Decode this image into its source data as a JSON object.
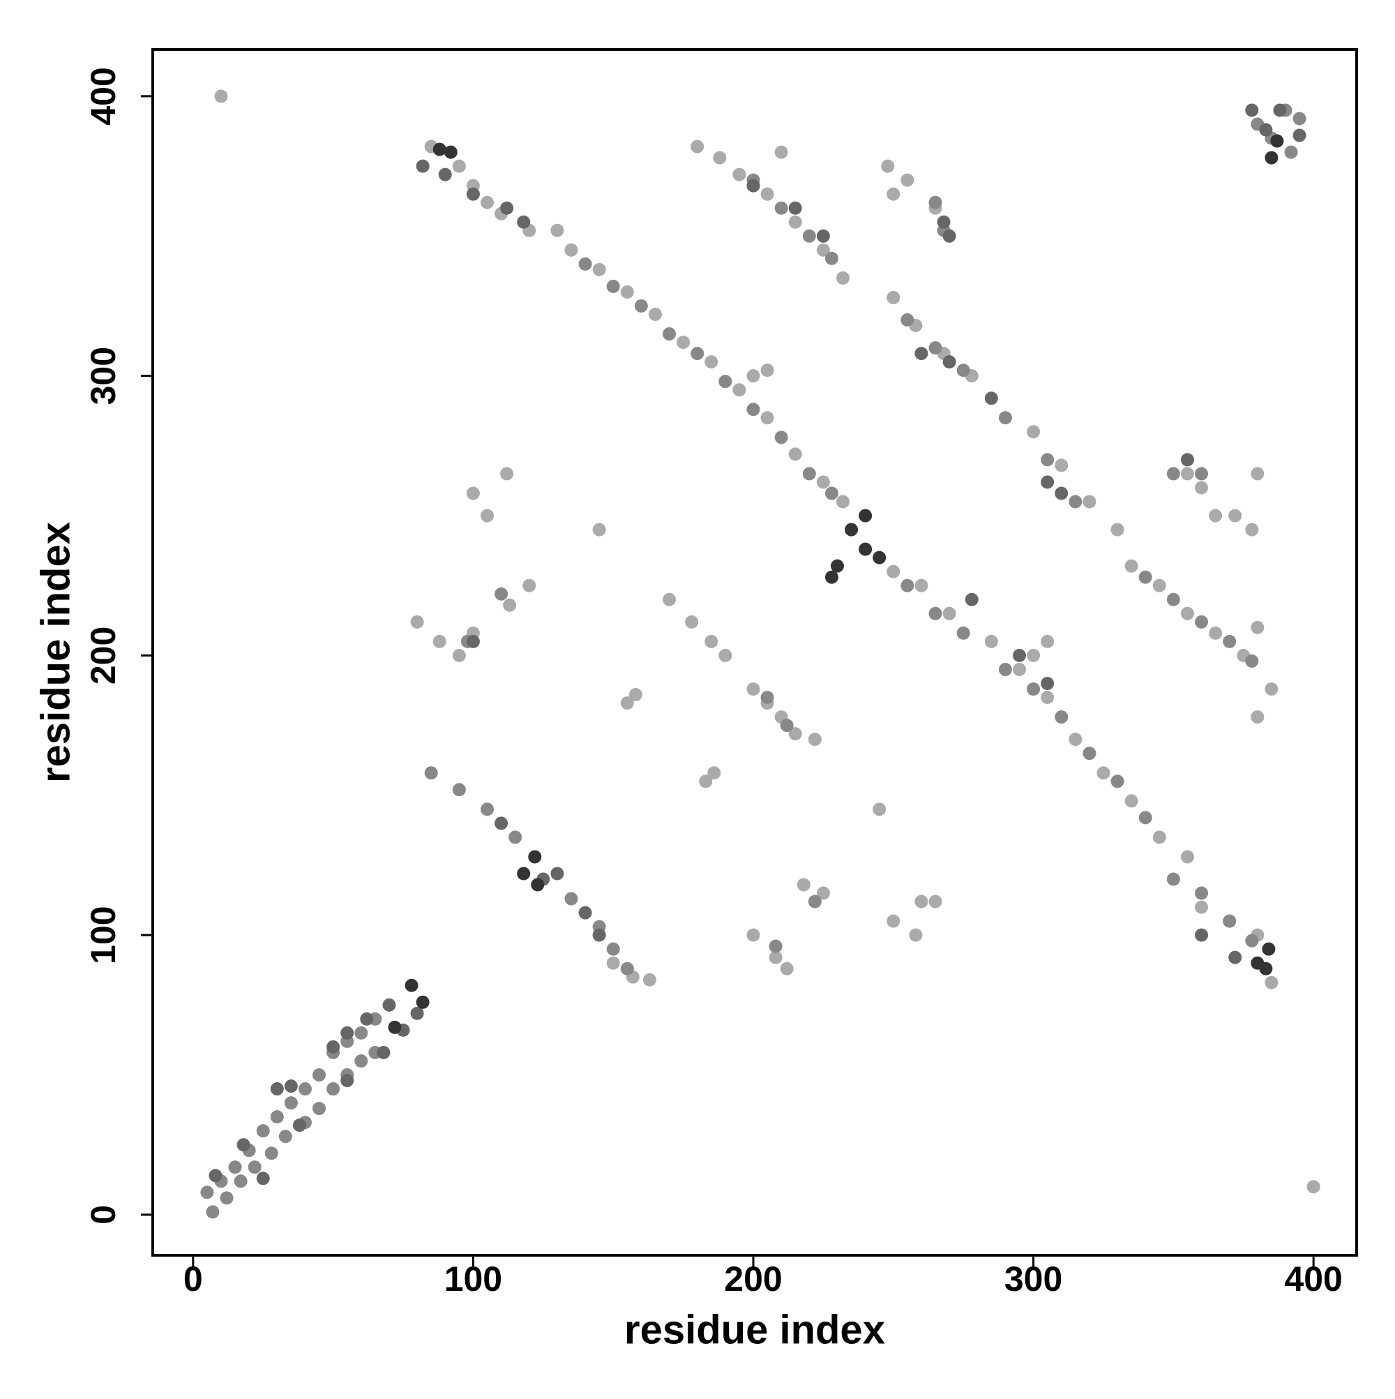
{
  "chart_data": {
    "type": "scatter",
    "xlabel": "residue index",
    "ylabel": "residue index",
    "xlim": [
      -14.4,
      415.4
    ],
    "ylim": [
      -14.5,
      416.7
    ],
    "xticks": [
      0,
      100,
      200,
      300,
      400
    ],
    "yticks": [
      0,
      100,
      200,
      300,
      400
    ],
    "series": [
      {
        "color": "#aaaaaa",
        "x": [
          10,
          400,
          85,
          95,
          100,
          105,
          110,
          120,
          130,
          180,
          188,
          195,
          205,
          215,
          225,
          232,
          135,
          145,
          155,
          165,
          175,
          185,
          195,
          205,
          215,
          225,
          232,
          250,
          260,
          270,
          285,
          295,
          305,
          315,
          325,
          335,
          345,
          355,
          250,
          258,
          268,
          278,
          300,
          310,
          320,
          330,
          335,
          345,
          355,
          365,
          375,
          385,
          380,
          355,
          360,
          365,
          372,
          378,
          80,
          88,
          95,
          100,
          100,
          105,
          112,
          113,
          120,
          170,
          178,
          185,
          190,
          200,
          205,
          210,
          215,
          222,
          155,
          158,
          183,
          186,
          210,
          248,
          250,
          255,
          265,
          145,
          245,
          260,
          265,
          250,
          258,
          200,
          208,
          212,
          218,
          225,
          380,
          380,
          300,
          305,
          205,
          200,
          385,
          380,
          370,
          360,
          157,
          163,
          150
        ],
        "y": [
          400,
          10,
          382,
          375,
          368,
          362,
          358,
          352,
          352,
          382,
          378,
          372,
          365,
          355,
          345,
          335,
          345,
          338,
          330,
          322,
          312,
          305,
          295,
          285,
          272,
          262,
          255,
          230,
          225,
          215,
          205,
          195,
          185,
          170,
          158,
          148,
          135,
          128,
          328,
          318,
          308,
          300,
          280,
          268,
          255,
          245,
          232,
          225,
          215,
          208,
          200,
          188,
          178,
          265,
          260,
          250,
          250,
          245,
          212,
          205,
          200,
          208,
          258,
          250,
          265,
          218,
          225,
          220,
          212,
          205,
          200,
          188,
          183,
          178,
          172,
          170,
          183,
          186,
          155,
          158,
          380,
          375,
          365,
          370,
          360,
          245,
          145,
          112,
          112,
          105,
          100,
          100,
          92,
          88,
          118,
          115,
          210,
          265,
          200,
          205,
          302,
          300,
          83,
          100,
          105,
          110,
          85,
          84,
          90
        ]
      },
      {
        "color": "#888888",
        "x": [
          5,
          10,
          15,
          20,
          25,
          30,
          35,
          40,
          45,
          50,
          55,
          60,
          65,
          7,
          12,
          17,
          22,
          28,
          33,
          40,
          45,
          50,
          55,
          60,
          65,
          85,
          95,
          105,
          115,
          135,
          145,
          150,
          155,
          140,
          150,
          160,
          170,
          180,
          190,
          200,
          210,
          220,
          228,
          255,
          265,
          275,
          290,
          300,
          310,
          320,
          330,
          340,
          350,
          360,
          370,
          378,
          200,
          210,
          220,
          228,
          255,
          265,
          275,
          290,
          305,
          315,
          340,
          350,
          360,
          370,
          378,
          380,
          385,
          390,
          395,
          392,
          350,
          360,
          110,
          205,
          212,
          222,
          208,
          265,
          268,
          98
        ],
        "y": [
          8,
          12,
          17,
          23,
          30,
          35,
          40,
          45,
          50,
          58,
          62,
          65,
          70,
          1,
          6,
          12,
          17,
          22,
          28,
          33,
          38,
          45,
          50,
          55,
          58,
          158,
          152,
          145,
          135,
          113,
          103,
          95,
          88,
          340,
          332,
          325,
          315,
          308,
          298,
          288,
          278,
          265,
          258,
          225,
          215,
          208,
          195,
          188,
          178,
          165,
          155,
          142,
          120,
          115,
          105,
          98,
          370,
          360,
          350,
          342,
          320,
          310,
          302,
          285,
          270,
          255,
          228,
          220,
          212,
          205,
          198,
          390,
          385,
          395,
          392,
          380,
          265,
          265,
          222,
          185,
          175,
          112,
          96,
          362,
          352,
          205
        ]
      },
      {
        "color": "#666666",
        "x": [
          8,
          18,
          30,
          35,
          50,
          55,
          62,
          70,
          25,
          38,
          55,
          68,
          75,
          80,
          82,
          90,
          100,
          112,
          118,
          110,
          125,
          130,
          140,
          145,
          200,
          215,
          225,
          260,
          270,
          285,
          305,
          310,
          278,
          295,
          305,
          360,
          372,
          378,
          383,
          395,
          388,
          270,
          268,
          355,
          100
        ],
        "y": [
          14,
          25,
          45,
          46,
          60,
          65,
          70,
          75,
          13,
          32,
          48,
          58,
          66,
          72,
          375,
          372,
          365,
          360,
          355,
          140,
          120,
          122,
          108,
          100,
          368,
          360,
          350,
          308,
          305,
          292,
          262,
          258,
          220,
          200,
          190,
          100,
          92,
          395,
          388,
          386,
          395,
          350,
          355,
          270,
          205
        ]
      },
      {
        "color": "#333333",
        "x": [
          78,
          82,
          72,
          88,
          92,
          118,
          122,
          123,
          235,
          240,
          245,
          230,
          228,
          240,
          380,
          383,
          384,
          387,
          385
        ],
        "y": [
          82,
          76,
          67,
          381,
          380,
          122,
          128,
          118,
          245,
          238,
          235,
          232,
          228,
          250,
          90,
          88,
          95,
          384,
          378
        ]
      }
    ]
  }
}
